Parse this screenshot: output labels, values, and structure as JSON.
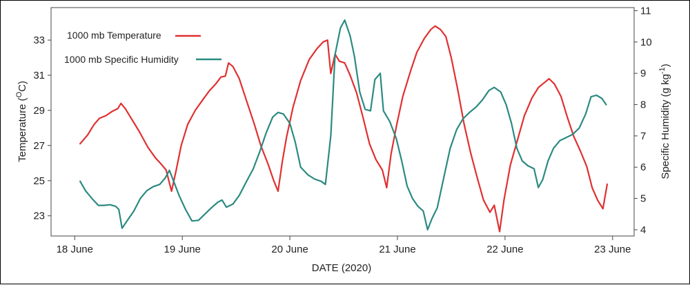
{
  "chart_data": {
    "type": "line",
    "xlabel": "DATE (2020)",
    "ylabel_left": "Temperature (",
    "ylabel_left_unit": "O",
    "ylabel_left_suffix": "C)",
    "ylabel_right": "Specific Humidity (g kg",
    "ylabel_right_sup": "-1",
    "ylabel_right_suffix": ")",
    "x_ticks": [
      {
        "x": 18,
        "label": "18 June"
      },
      {
        "x": 19,
        "label": "19 June"
      },
      {
        "x": 20,
        "label": "20 June"
      },
      {
        "x": 21,
        "label": "21 June"
      },
      {
        "x": 22,
        "label": "22 June"
      },
      {
        "x": 23,
        "label": "23 June"
      }
    ],
    "xlim": [
      17.78,
      23.2
    ],
    "y_left_ticks": [
      23,
      25,
      27,
      29,
      31,
      33
    ],
    "y_left_lim": [
      21.85,
      34.85
    ],
    "y_right_ticks": [
      4,
      5,
      6,
      7,
      8,
      9,
      10,
      11
    ],
    "y_right_lim": [
      3.8,
      11.1
    ],
    "legend_position": "top-left",
    "series": [
      {
        "name": "1000 mb Temperature",
        "axis": "left",
        "color": "#e03030",
        "points": [
          [
            18.05,
            27.1
          ],
          [
            18.12,
            27.6
          ],
          [
            18.18,
            28.2
          ],
          [
            18.23,
            28.55
          ],
          [
            18.29,
            28.7
          ],
          [
            18.35,
            28.95
          ],
          [
            18.4,
            29.1
          ],
          [
            18.43,
            29.4
          ],
          [
            18.47,
            29.1
          ],
          [
            18.53,
            28.5
          ],
          [
            18.6,
            27.8
          ],
          [
            18.68,
            26.9
          ],
          [
            18.75,
            26.3
          ],
          [
            18.81,
            25.9
          ],
          [
            18.85,
            25.6
          ],
          [
            18.9,
            24.4
          ],
          [
            18.94,
            25.5
          ],
          [
            18.99,
            27.0
          ],
          [
            19.05,
            28.2
          ],
          [
            19.12,
            29.0
          ],
          [
            19.19,
            29.6
          ],
          [
            19.25,
            30.1
          ],
          [
            19.31,
            30.5
          ],
          [
            19.36,
            30.9
          ],
          [
            19.4,
            30.95
          ],
          [
            19.43,
            31.7
          ],
          [
            19.47,
            31.5
          ],
          [
            19.53,
            30.8
          ],
          [
            19.6,
            29.5
          ],
          [
            19.67,
            28.2
          ],
          [
            19.73,
            27.0
          ],
          [
            19.8,
            25.9
          ],
          [
            19.85,
            25.0
          ],
          [
            19.89,
            24.4
          ],
          [
            19.93,
            26.1
          ],
          [
            19.97,
            27.5
          ],
          [
            20.03,
            29.2
          ],
          [
            20.1,
            30.7
          ],
          [
            20.18,
            31.9
          ],
          [
            20.25,
            32.5
          ],
          [
            20.31,
            32.9
          ],
          [
            20.35,
            33.0
          ],
          [
            20.38,
            31.1
          ],
          [
            20.42,
            32.2
          ],
          [
            20.46,
            31.8
          ],
          [
            20.51,
            31.7
          ],
          [
            20.56,
            31.0
          ],
          [
            20.62,
            30.0
          ],
          [
            20.68,
            28.6
          ],
          [
            20.74,
            27.1
          ],
          [
            20.8,
            26.2
          ],
          [
            20.86,
            25.6
          ],
          [
            20.9,
            24.6
          ],
          [
            20.94,
            26.5
          ],
          [
            20.99,
            28.1
          ],
          [
            21.05,
            29.8
          ],
          [
            21.12,
            31.2
          ],
          [
            21.18,
            32.3
          ],
          [
            21.25,
            33.1
          ],
          [
            21.31,
            33.6
          ],
          [
            21.35,
            33.8
          ],
          [
            21.4,
            33.6
          ],
          [
            21.45,
            33.2
          ],
          [
            21.5,
            32.0
          ],
          [
            21.56,
            30.2
          ],
          [
            21.62,
            28.2
          ],
          [
            21.68,
            26.6
          ],
          [
            21.74,
            25.2
          ],
          [
            21.8,
            23.9
          ],
          [
            21.86,
            23.2
          ],
          [
            21.9,
            23.6
          ],
          [
            21.95,
            22.1
          ],
          [
            21.99,
            23.9
          ],
          [
            22.05,
            25.9
          ],
          [
            22.12,
            27.4
          ],
          [
            22.18,
            28.7
          ],
          [
            22.25,
            29.7
          ],
          [
            22.31,
            30.3
          ],
          [
            22.37,
            30.6
          ],
          [
            22.41,
            30.8
          ],
          [
            22.46,
            30.5
          ],
          [
            22.52,
            29.8
          ],
          [
            22.58,
            28.6
          ],
          [
            22.64,
            27.5
          ],
          [
            22.7,
            26.7
          ],
          [
            22.76,
            25.8
          ],
          [
            22.81,
            24.6
          ],
          [
            22.86,
            23.9
          ],
          [
            22.91,
            23.4
          ],
          [
            22.95,
            24.8
          ]
        ]
      },
      {
        "name": "1000 mb Specific Humidity",
        "axis": "right",
        "color": "#2a8a80",
        "points": [
          [
            18.05,
            5.55
          ],
          [
            18.1,
            5.25
          ],
          [
            18.16,
            5.0
          ],
          [
            18.22,
            4.78
          ],
          [
            18.27,
            4.78
          ],
          [
            18.33,
            4.8
          ],
          [
            18.38,
            4.75
          ],
          [
            18.41,
            4.65
          ],
          [
            18.44,
            4.05
          ],
          [
            18.49,
            4.3
          ],
          [
            18.55,
            4.6
          ],
          [
            18.61,
            5.0
          ],
          [
            18.67,
            5.25
          ],
          [
            18.73,
            5.38
          ],
          [
            18.79,
            5.45
          ],
          [
            18.84,
            5.65
          ],
          [
            18.88,
            5.9
          ],
          [
            18.92,
            5.55
          ],
          [
            18.97,
            5.1
          ],
          [
            19.03,
            4.65
          ],
          [
            19.09,
            4.28
          ],
          [
            19.15,
            4.3
          ],
          [
            19.21,
            4.5
          ],
          [
            19.27,
            4.7
          ],
          [
            19.33,
            4.88
          ],
          [
            19.37,
            4.95
          ],
          [
            19.41,
            4.72
          ],
          [
            19.47,
            4.82
          ],
          [
            19.53,
            5.1
          ],
          [
            19.59,
            5.5
          ],
          [
            19.66,
            5.95
          ],
          [
            19.72,
            6.5
          ],
          [
            19.78,
            7.1
          ],
          [
            19.84,
            7.6
          ],
          [
            19.89,
            7.75
          ],
          [
            19.94,
            7.7
          ],
          [
            20.0,
            7.4
          ],
          [
            20.05,
            6.8
          ],
          [
            20.1,
            6.0
          ],
          [
            20.17,
            5.75
          ],
          [
            20.23,
            5.62
          ],
          [
            20.29,
            5.55
          ],
          [
            20.33,
            5.45
          ],
          [
            20.38,
            7.0
          ],
          [
            20.42,
            9.6
          ],
          [
            20.47,
            10.45
          ],
          [
            20.51,
            10.7
          ],
          [
            20.56,
            10.2
          ],
          [
            20.6,
            9.55
          ],
          [
            20.65,
            8.4
          ],
          [
            20.7,
            7.85
          ],
          [
            20.75,
            7.8
          ],
          [
            20.79,
            8.8
          ],
          [
            20.84,
            9.0
          ],
          [
            20.87,
            7.8
          ],
          [
            20.93,
            7.45
          ],
          [
            20.99,
            6.9
          ],
          [
            21.04,
            6.2
          ],
          [
            21.09,
            5.4
          ],
          [
            21.14,
            5.0
          ],
          [
            21.19,
            4.75
          ],
          [
            21.24,
            4.6
          ],
          [
            21.28,
            4.0
          ],
          [
            21.32,
            4.35
          ],
          [
            21.37,
            4.7
          ],
          [
            21.43,
            5.65
          ],
          [
            21.49,
            6.6
          ],
          [
            21.55,
            7.2
          ],
          [
            21.61,
            7.55
          ],
          [
            21.67,
            7.75
          ],
          [
            21.73,
            7.92
          ],
          [
            21.79,
            8.15
          ],
          [
            21.85,
            8.45
          ],
          [
            21.9,
            8.55
          ],
          [
            21.96,
            8.4
          ],
          [
            22.01,
            8.0
          ],
          [
            22.06,
            7.4
          ],
          [
            22.11,
            6.6
          ],
          [
            22.16,
            6.2
          ],
          [
            22.21,
            6.05
          ],
          [
            22.27,
            5.95
          ],
          [
            22.31,
            5.35
          ],
          [
            22.35,
            5.6
          ],
          [
            22.4,
            6.2
          ],
          [
            22.45,
            6.6
          ],
          [
            22.51,
            6.85
          ],
          [
            22.57,
            6.95
          ],
          [
            22.63,
            7.05
          ],
          [
            22.69,
            7.25
          ],
          [
            22.75,
            7.7
          ],
          [
            22.8,
            8.25
          ],
          [
            22.85,
            8.3
          ],
          [
            22.9,
            8.2
          ],
          [
            22.94,
            8.0
          ]
        ]
      }
    ]
  }
}
